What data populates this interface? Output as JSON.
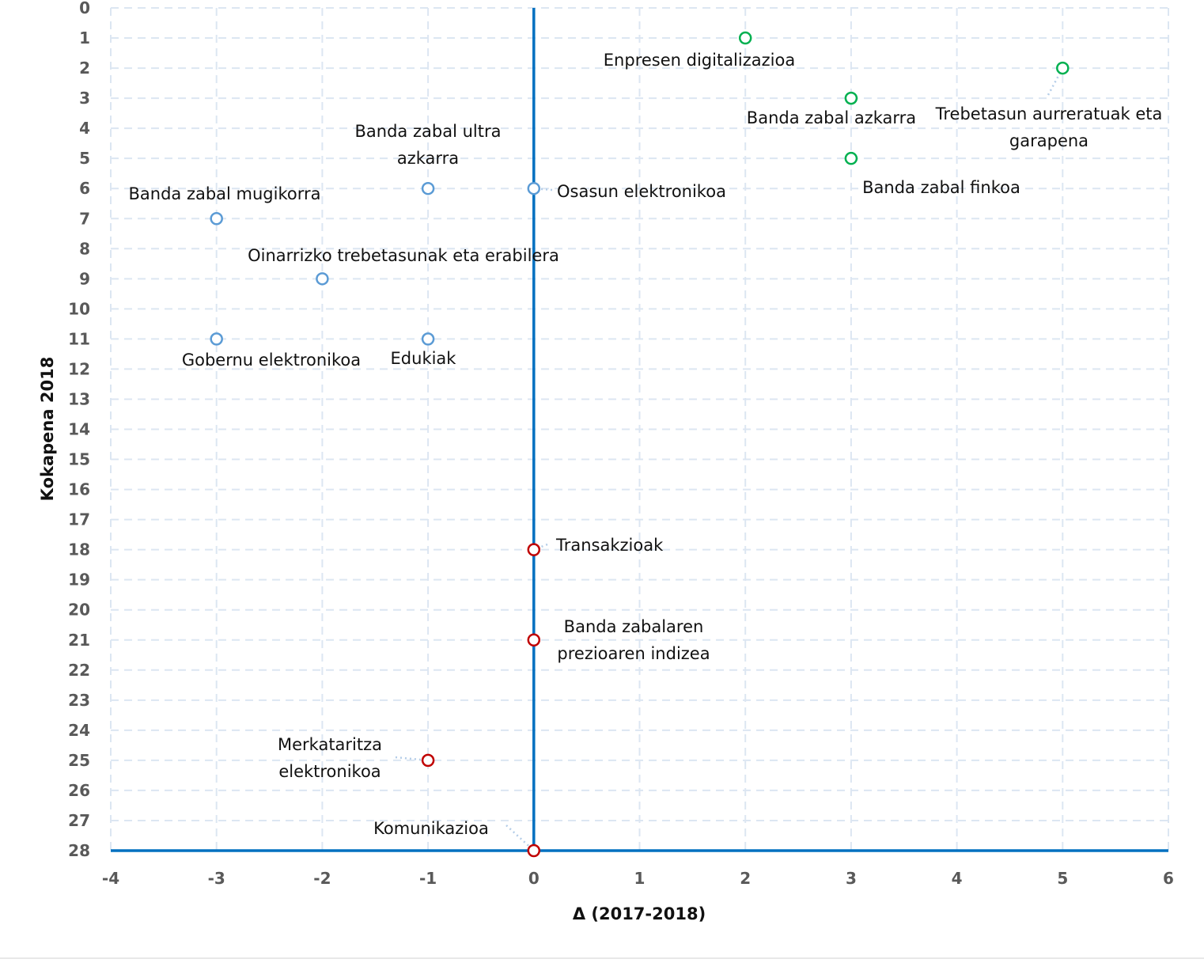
{
  "chart_data": {
    "type": "scatter",
    "title": "",
    "xlabel": "Δ (2017-2018)",
    "ylabel": "Kokapena 2018",
    "xlim": [
      -4,
      6
    ],
    "ylim": [
      0,
      28
    ],
    "y_reversed": true,
    "grid": true,
    "x_ticks": [
      "-4",
      "-3",
      "-2",
      "-1",
      "0",
      "1",
      "2",
      "3",
      "4",
      "5",
      "6"
    ],
    "y_ticks": [
      "0",
      "1",
      "2",
      "3",
      "4",
      "5",
      "6",
      "7",
      "8",
      "9",
      "10",
      "11",
      "12",
      "13",
      "14",
      "15",
      "16",
      "17",
      "18",
      "19",
      "20",
      "21",
      "22",
      "23",
      "24",
      "25",
      "26",
      "27",
      "28"
    ],
    "colors": {
      "green": "#00b050",
      "blue": "#5b9bd5",
      "red": "#c00000",
      "axis": "#0070c0",
      "grid": "#dce6f2"
    },
    "points": [
      {
        "label": "Enpresen digitalizazioa",
        "x": 2,
        "y": 1,
        "color": "green"
      },
      {
        "label": "Trebetasun aurreratuak eta garapena",
        "x": 5,
        "y": 2,
        "color": "green"
      },
      {
        "label": "Banda zabal azkarra",
        "x": 3,
        "y": 3,
        "color": "green"
      },
      {
        "label": "Banda zabal finkoa",
        "x": 3,
        "y": 5,
        "color": "green"
      },
      {
        "label": "Banda zabal ultra azkarra",
        "x": -1,
        "y": 6,
        "color": "blue"
      },
      {
        "label": "Osasun elektronikoa",
        "x": 0,
        "y": 6,
        "color": "blue"
      },
      {
        "label": "Banda zabal mugikorra",
        "x": -3,
        "y": 7,
        "color": "blue"
      },
      {
        "label": "Oinarrizko trebetasunak eta erabilera",
        "x": -2,
        "y": 9,
        "color": "blue"
      },
      {
        "label": "Gobernu elektronikoa",
        "x": -3,
        "y": 11,
        "color": "blue"
      },
      {
        "label": "Edukiak",
        "x": -1,
        "y": 11,
        "color": "blue"
      },
      {
        "label": "Transakzioak",
        "x": 0,
        "y": 18,
        "color": "red"
      },
      {
        "label": "Banda zabalaren prezioaren indizea",
        "x": 0,
        "y": 21,
        "color": "red"
      },
      {
        "label": "Merkataritza elektronikoa",
        "x": -1,
        "y": 25,
        "color": "red"
      },
      {
        "label": "Komunikazioa",
        "x": 0,
        "y": 28,
        "color": "red"
      }
    ]
  }
}
